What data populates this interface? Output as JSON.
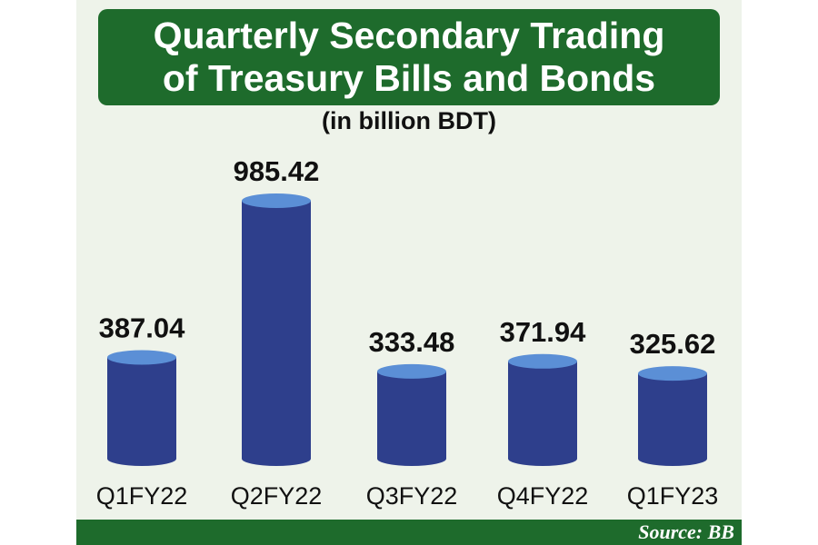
{
  "header": {
    "title": "Quarterly Secondary Trading of Treasury Bills and Bonds",
    "subtitle": "(in billion BDT)"
  },
  "footer": {
    "source": "Source: BB"
  },
  "colors": {
    "title_bg": "#1e6b2c",
    "panel_bg": "#eef3ea",
    "bar_body": "#2e3f8c",
    "bar_top": "#5b8fd6",
    "label_text": "#111111"
  },
  "chart_data": {
    "type": "bar",
    "style": "3d-cylinder",
    "title": "Quarterly Secondary Trading of Treasury Bills and Bonds",
    "subtitle": "(in billion BDT)",
    "categories": [
      "Q1FY22",
      "Q2FY22",
      "Q3FY22",
      "Q4FY22",
      "Q1FY23"
    ],
    "values": [
      387.04,
      985.42,
      333.48,
      371.94,
      325.62
    ],
    "value_labels": [
      "387.04",
      "985.42",
      "333.48",
      "371.94",
      "325.62"
    ],
    "ylim": [
      0,
      1000
    ],
    "grid": false,
    "legend": "none"
  }
}
